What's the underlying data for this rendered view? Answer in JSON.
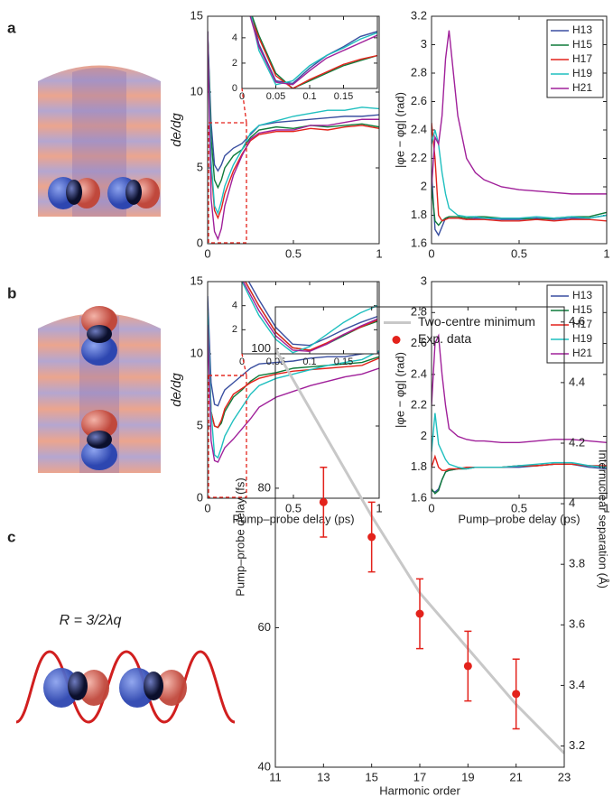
{
  "panel_labels": [
    "a",
    "b",
    "c"
  ],
  "illustration_label": "R = 3/2λq",
  "chart_data": [
    {
      "type": "line",
      "y_label": "de/dg",
      "xlim": [
        0,
        1
      ],
      "ylim": [
        0,
        15
      ],
      "xticks": [
        0,
        0.5,
        1
      ],
      "yticks": [
        0,
        5,
        10,
        15
      ],
      "x": [
        0,
        0.02,
        0.04,
        0.06,
        0.08,
        0.1,
        0.15,
        0.2,
        0.25,
        0.3,
        0.4,
        0.5,
        0.6,
        0.7,
        0.8,
        0.9,
        1
      ],
      "series": [
        {
          "color": "#3a4fa0",
          "values": [
            14,
            8,
            5.2,
            4.8,
            5.2,
            5.8,
            6.3,
            6.6,
            7.2,
            7.8,
            8.0,
            8.1,
            8.2,
            8.3,
            8.4,
            8.4,
            8.5
          ]
        },
        {
          "color": "#0f7a3a",
          "values": [
            14,
            7,
            4.2,
            3.7,
            4.2,
            5.0,
            5.8,
            6.2,
            7.0,
            7.5,
            7.7,
            7.6,
            7.8,
            7.7,
            7.8,
            7.9,
            7.7
          ]
        },
        {
          "color": "#e3221b",
          "values": [
            14,
            5,
            2.2,
            1.7,
            2.3,
            3.3,
            4.8,
            5.9,
            6.8,
            7.2,
            7.4,
            7.4,
            7.6,
            7.5,
            7.7,
            7.8,
            7.6
          ]
        },
        {
          "color": "#1fbfbf",
          "values": [
            14,
            5.5,
            2.5,
            2.0,
            2.8,
            3.8,
            5.2,
            6.2,
            7.3,
            7.8,
            8.1,
            8.4,
            8.6,
            8.8,
            8.8,
            9.0,
            8.9
          ]
        },
        {
          "color": "#a0209a",
          "values": [
            14,
            3,
            0.8,
            0.3,
            1.0,
            2.5,
            4.5,
            5.8,
            6.9,
            7.3,
            7.5,
            7.5,
            7.8,
            7.8,
            8.0,
            8.2,
            8.2
          ]
        }
      ]
    },
    {
      "type": "line",
      "xlim": [
        0,
        0.2
      ],
      "ylim": [
        0,
        5.7
      ],
      "xticks": [
        0,
        0.05,
        0.1,
        0.15
      ],
      "yticks": [
        0,
        2,
        4
      ],
      "x": [
        0,
        0.025,
        0.05,
        0.075,
        0.1,
        0.125,
        0.15,
        0.175,
        0.2
      ],
      "series": [
        {
          "color": "#3a4fa0",
          "values": [
            9,
            3.5,
            0.6,
            0.4,
            1.6,
            2.6,
            3.3,
            4.1,
            4.5
          ]
        },
        {
          "color": "#0f7a3a",
          "values": [
            8,
            4.2,
            1.2,
            0,
            0.6,
            1.2,
            1.8,
            2.2,
            2.6
          ]
        },
        {
          "color": "#e3221b",
          "values": [
            7.5,
            4.0,
            1.0,
            0,
            0.7,
            1.3,
            1.9,
            2.3,
            2.6
          ]
        },
        {
          "color": "#1fbfbf",
          "values": [
            9,
            3.0,
            0.3,
            0.6,
            1.8,
            2.6,
            3.2,
            3.9,
            4.4
          ]
        },
        {
          "color": "#a0209a",
          "values": [
            8,
            3.3,
            0.5,
            0.3,
            1.4,
            2.4,
            3.0,
            3.6,
            4.2
          ]
        }
      ]
    },
    {
      "type": "line",
      "y_label": "|φe − φg| (rad)",
      "xlim": [
        0,
        1
      ],
      "ylim": [
        1.6,
        3.2
      ],
      "xticks": [
        0,
        0.5,
        1
      ],
      "yticks": [
        1.6,
        1.8,
        2,
        2.2,
        2.4,
        2.6,
        2.8,
        3,
        3.2
      ],
      "legend": "upper right",
      "x": [
        0,
        0.02,
        0.04,
        0.06,
        0.08,
        0.1,
        0.15,
        0.2,
        0.25,
        0.3,
        0.4,
        0.5,
        0.6,
        0.7,
        0.8,
        0.9,
        1
      ],
      "series": [
        {
          "name": "H13",
          "color": "#3a4fa0",
          "values": [
            2.1,
            1.7,
            1.66,
            1.72,
            1.78,
            1.78,
            1.78,
            1.77,
            1.78,
            1.78,
            1.77,
            1.77,
            1.78,
            1.77,
            1.78,
            1.78,
            1.8
          ]
        },
        {
          "name": "H15",
          "color": "#0f7a3a",
          "values": [
            2.0,
            1.76,
            1.73,
            1.76,
            1.78,
            1.79,
            1.79,
            1.78,
            1.79,
            1.79,
            1.78,
            1.78,
            1.77,
            1.78,
            1.79,
            1.79,
            1.82
          ]
        },
        {
          "name": "H17",
          "color": "#e3221b",
          "values": [
            2.45,
            2.2,
            1.8,
            1.76,
            1.77,
            1.78,
            1.78,
            1.77,
            1.77,
            1.77,
            1.76,
            1.76,
            1.77,
            1.76,
            1.77,
            1.77,
            1.76
          ]
        },
        {
          "name": "H19",
          "color": "#1fbfbf",
          "values": [
            2.3,
            2.4,
            2.3,
            2.1,
            1.95,
            1.85,
            1.8,
            1.79,
            1.79,
            1.78,
            1.78,
            1.78,
            1.79,
            1.78,
            1.79,
            1.78,
            1.8
          ]
        },
        {
          "name": "H21",
          "color": "#a0209a",
          "values": [
            2.0,
            2.35,
            2.3,
            2.5,
            2.9,
            3.1,
            2.5,
            2.2,
            2.1,
            2.05,
            2.0,
            1.98,
            1.97,
            1.96,
            1.95,
            1.95,
            1.95
          ]
        }
      ]
    },
    {
      "type": "line",
      "y_label": "de/dg",
      "x_label": "Pump–probe delay (ps)",
      "xlim": [
        0,
        1
      ],
      "ylim": [
        0,
        15
      ],
      "xticks": [
        0,
        0.5,
        1
      ],
      "yticks": [
        0,
        5,
        10,
        15
      ],
      "x": [
        0,
        0.02,
        0.04,
        0.06,
        0.08,
        0.1,
        0.15,
        0.2,
        0.25,
        0.3,
        0.4,
        0.5,
        0.6,
        0.7,
        0.8,
        0.9,
        1
      ],
      "series": [
        {
          "color": "#3a4fa0",
          "values": [
            14,
            8,
            6.5,
            6.4,
            7.0,
            7.5,
            8.0,
            8.5,
            9.0,
            9.3,
            9.4,
            9.5,
            9.7,
            9.8,
            9.8,
            10,
            10.1
          ]
        },
        {
          "color": "#0f7a3a",
          "values": [
            13,
            6,
            5,
            4.9,
            5.2,
            6,
            7,
            7.5,
            8.1,
            8.5,
            8.7,
            9.0,
            9.1,
            9.2,
            9.3,
            9.4,
            9.8
          ]
        },
        {
          "color": "#e3221b",
          "values": [
            13,
            6,
            5,
            4.9,
            5.4,
            6.2,
            7.2,
            7.6,
            8.0,
            8.3,
            8.6,
            8.8,
            8.9,
            9.0,
            9.1,
            9.2,
            9.7
          ]
        },
        {
          "color": "#1fbfbf",
          "values": [
            13,
            6,
            3.0,
            2.8,
            3.5,
            4.3,
            5.4,
            6.3,
            7.2,
            7.8,
            8.3,
            8.6,
            8.9,
            9.2,
            9.4,
            9.6,
            10.2
          ]
        },
        {
          "color": "#a0209a",
          "values": [
            12,
            4,
            2.6,
            2.5,
            3.0,
            3.5,
            4.1,
            4.8,
            5.5,
            6.3,
            7.0,
            7.4,
            7.8,
            8.1,
            8.4,
            8.6,
            9.0
          ]
        }
      ]
    },
    {
      "type": "line",
      "xlim": [
        0,
        0.2
      ],
      "ylim": [
        0,
        6
      ],
      "xticks": [
        0,
        0.05,
        0.1,
        0.15
      ],
      "yticks": [
        2,
        4
      ],
      "x": [
        0,
        0.025,
        0.05,
        0.075,
        0.1,
        0.125,
        0.15,
        0.175,
        0.2
      ],
      "series": [
        {
          "color": "#3a4fa0",
          "values": [
            7,
            4.5,
            2.2,
            0.8,
            0.7,
            1.3,
            2.0,
            2.6,
            3.1
          ]
        },
        {
          "color": "#0f7a3a",
          "values": [
            6.5,
            4,
            1.8,
            0.5,
            0.3,
            0.8,
            1.5,
            2.2,
            2.7
          ]
        },
        {
          "color": "#e3221b",
          "values": [
            6.5,
            4,
            1.8,
            0.5,
            0.3,
            0.9,
            1.6,
            2.2,
            2.8
          ]
        },
        {
          "color": "#1fbfbf",
          "values": [
            6,
            3.2,
            1.2,
            0.1,
            0.6,
            1.6,
            2.6,
            3.4,
            4.0
          ]
        },
        {
          "color": "#a0209a",
          "values": [
            6.2,
            3.6,
            1.5,
            0.3,
            0.2,
            0.8,
            1.6,
            2.3,
            2.9
          ]
        }
      ]
    },
    {
      "type": "line",
      "y_label": "|φe − φg| (rad)",
      "x_label": "Pump–probe delay (ps)",
      "xlim": [
        0,
        1
      ],
      "ylim": [
        1.6,
        3
      ],
      "xticks": [
        0,
        0.5,
        1
      ],
      "yticks": [
        1.6,
        1.8,
        2,
        2.2,
        2.4,
        2.6,
        2.8,
        3
      ],
      "legend": "upper right",
      "x": [
        0,
        0.02,
        0.04,
        0.06,
        0.08,
        0.1,
        0.15,
        0.2,
        0.25,
        0.3,
        0.4,
        0.5,
        0.6,
        0.7,
        0.8,
        0.9,
        1
      ],
      "series": [
        {
          "name": "H13",
          "color": "#3a4fa0",
          "values": [
            1.65,
            1.64,
            1.66,
            1.72,
            1.77,
            1.78,
            1.79,
            1.79,
            1.8,
            1.8,
            1.8,
            1.8,
            1.81,
            1.82,
            1.82,
            1.8,
            1.79
          ]
        },
        {
          "name": "H15",
          "color": "#0f7a3a",
          "values": [
            1.66,
            1.63,
            1.65,
            1.72,
            1.77,
            1.78,
            1.79,
            1.79,
            1.8,
            1.8,
            1.8,
            1.81,
            1.81,
            1.82,
            1.82,
            1.81,
            1.8
          ]
        },
        {
          "name": "H17",
          "color": "#e3221b",
          "values": [
            1.8,
            1.87,
            1.8,
            1.78,
            1.78,
            1.79,
            1.79,
            1.8,
            1.8,
            1.8,
            1.8,
            1.81,
            1.81,
            1.82,
            1.82,
            1.81,
            1.81
          ]
        },
        {
          "name": "H19",
          "color": "#1fbfbf",
          "values": [
            1.9,
            2.15,
            1.95,
            1.9,
            1.85,
            1.82,
            1.8,
            1.79,
            1.8,
            1.8,
            1.8,
            1.81,
            1.82,
            1.83,
            1.83,
            1.81,
            1.8
          ]
        },
        {
          "name": "H21",
          "color": "#a0209a",
          "values": [
            2.2,
            2.6,
            2.65,
            2.4,
            2.2,
            2.05,
            2.0,
            1.98,
            1.97,
            1.97,
            1.96,
            1.96,
            1.97,
            1.98,
            1.98,
            1.97,
            1.96
          ]
        }
      ]
    },
    {
      "type": "line",
      "x_label": "Harmonic order",
      "y_label": "Pump–probe delay (fs)",
      "y2_label": "Internuclear separation (Å)",
      "legend": "upper right",
      "xlim": [
        11,
        23
      ],
      "ylim": [
        40,
        106
      ],
      "y2lim": [
        3.13,
        4.65
      ],
      "xticks": [
        11,
        13,
        15,
        17,
        19,
        21,
        23
      ],
      "yticks": [
        40,
        60,
        80,
        100
      ],
      "y2ticks": [
        3.2,
        3.4,
        3.6,
        3.8,
        4,
        4.2,
        4.4,
        4.6
      ],
      "series": [
        {
          "name": "Two-centre minimum",
          "type": "line",
          "color": "#c8c8c8",
          "x": [
            11,
            13,
            15,
            17,
            19,
            21,
            23
          ],
          "values": [
            100,
            88,
            76,
            65,
            57,
            49,
            42
          ]
        },
        {
          "name": "Exp. data",
          "type": "scatter",
          "color": "#e3221b",
          "x": [
            13,
            15,
            17,
            19,
            21
          ],
          "values": [
            78,
            73,
            62,
            54.5,
            50.5
          ],
          "errors": [
            5,
            5,
            5,
            5,
            5
          ]
        }
      ]
    }
  ]
}
